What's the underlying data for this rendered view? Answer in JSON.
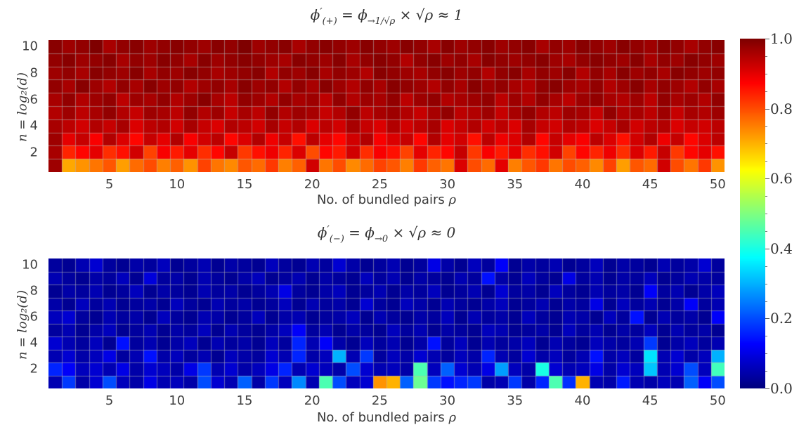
{
  "figure": {
    "background": "#ffffff",
    "xlabel_text": "No. of bundled pairs ",
    "xlabel_rho": "ρ",
    "ylabel": "n = log₂(d)",
    "x_ticks": [
      5,
      10,
      15,
      20,
      25,
      30,
      35,
      40,
      45,
      50
    ],
    "y_ticks": [
      10,
      8,
      6,
      4,
      2
    ],
    "grid_color": "rgba(180,180,180,0.55)"
  },
  "titles": {
    "plus": {
      "phi": "ϕ",
      "prime": "′",
      "sub1": "(+)",
      "eq": " = ",
      "phi2": "ϕ",
      "sub2": "→1/√ρ",
      "tail": " × √ρ ≈ 1"
    },
    "minus": {
      "phi": "ϕ",
      "prime": "′",
      "sub1": "(−)",
      "eq": " = ",
      "phi2": "ϕ",
      "sub2": "→0",
      "tail": " × √ρ ≈ 0"
    }
  },
  "colorbar": {
    "min": 0.0,
    "max": 1.0,
    "major_step": 0.2,
    "minor_step": 0.05,
    "labels": [
      "0.0",
      "0.2",
      "0.4",
      "0.6",
      "0.8",
      "1.0"
    ],
    "colormap": "jet",
    "top_color": "#800000",
    "bottom_color": "#000080"
  },
  "chart_data": [
    {
      "type": "heatmap",
      "title": "ϕ′(+) = ϕ→1/√ρ × √ρ ≈ 1",
      "xlabel": "No. of bundled pairs ρ",
      "ylabel": "n = log₂(d)",
      "x_range": [
        1,
        50
      ],
      "y_range": [
        1,
        10
      ],
      "vmin": 0.0,
      "vmax": 1.0,
      "colormap": "jet",
      "legend": "none",
      "grid": true,
      "rows_top_to_bottom": [
        [
          0.99,
          0.97,
          0.98,
          1.0,
          0.96,
          0.98,
          0.99,
          0.97,
          0.98,
          0.99,
          0.98,
          0.97,
          0.99,
          0.98,
          1.0,
          0.97,
          0.98,
          0.99,
          0.96,
          0.98,
          0.99,
          0.98,
          0.97,
          0.99,
          0.98,
          0.97,
          0.99,
          0.98,
          0.96,
          0.99,
          0.97,
          0.98,
          0.99,
          0.97,
          0.98,
          0.99,
          0.96,
          0.98,
          0.97,
          0.99,
          0.98,
          0.97,
          0.99,
          0.98,
          0.97,
          0.99,
          0.98,
          0.96,
          0.98,
          0.99
        ],
        [
          0.98,
          0.99,
          0.97,
          0.98,
          0.99,
          0.96,
          0.98,
          0.97,
          0.99,
          0.98,
          0.96,
          0.99,
          0.97,
          0.98,
          0.99,
          0.98,
          0.97,
          0.96,
          0.99,
          0.98,
          0.97,
          0.99,
          0.96,
          0.98,
          0.99,
          0.98,
          0.95,
          0.98,
          0.99,
          0.97,
          0.98,
          0.96,
          0.99,
          0.98,
          0.97,
          0.98,
          0.99,
          0.97,
          0.96,
          0.98,
          0.99,
          0.98,
          0.97,
          0.99,
          0.96,
          0.98,
          0.97,
          0.99,
          0.98,
          0.97
        ],
        [
          0.97,
          0.98,
          0.96,
          0.99,
          0.98,
          0.97,
          0.99,
          0.96,
          0.98,
          0.97,
          0.99,
          0.98,
          0.96,
          0.97,
          0.98,
          0.99,
          0.95,
          0.98,
          0.97,
          0.99,
          0.96,
          0.98,
          0.97,
          0.95,
          0.99,
          0.98,
          0.97,
          0.96,
          0.98,
          0.99,
          0.97,
          0.98,
          0.95,
          0.98,
          0.99,
          0.96,
          0.98,
          0.97,
          0.99,
          0.95,
          0.98,
          0.96,
          0.99,
          0.97,
          0.98,
          0.96,
          0.99,
          0.98,
          0.97,
          0.98
        ],
        [
          0.98,
          0.96,
          0.99,
          0.97,
          0.95,
          0.98,
          0.96,
          0.99,
          0.97,
          0.98,
          0.95,
          0.97,
          0.98,
          0.96,
          0.99,
          0.97,
          0.98,
          0.95,
          0.98,
          0.96,
          0.99,
          0.97,
          0.95,
          0.98,
          0.96,
          0.99,
          0.98,
          0.97,
          0.95,
          0.98,
          0.96,
          0.99,
          0.97,
          0.98,
          0.96,
          0.95,
          0.98,
          0.99,
          0.97,
          0.96,
          0.98,
          0.95,
          0.97,
          0.99,
          0.96,
          0.98,
          0.97,
          0.95,
          0.98,
          0.96
        ],
        [
          0.96,
          0.98,
          0.95,
          0.97,
          0.98,
          0.94,
          0.97,
          0.96,
          0.98,
          0.95,
          0.97,
          0.99,
          0.96,
          0.94,
          0.98,
          0.97,
          0.95,
          0.98,
          0.96,
          0.97,
          0.94,
          0.98,
          0.95,
          0.97,
          0.96,
          0.98,
          0.94,
          0.97,
          0.98,
          0.95,
          0.96,
          0.97,
          0.98,
          0.94,
          0.97,
          0.95,
          0.98,
          0.96,
          0.94,
          0.97,
          0.98,
          0.96,
          0.95,
          0.97,
          0.94,
          0.98,
          0.96,
          0.97,
          0.95,
          0.98
        ],
        [
          0.95,
          0.97,
          0.94,
          0.96,
          0.98,
          0.95,
          0.93,
          0.97,
          0.96,
          0.94,
          0.98,
          0.95,
          0.97,
          0.93,
          0.96,
          0.94,
          0.98,
          0.95,
          0.97,
          0.96,
          0.93,
          0.95,
          0.98,
          0.94,
          0.96,
          0.97,
          0.95,
          0.93,
          0.96,
          0.98,
          0.94,
          0.95,
          0.97,
          0.93,
          0.96,
          0.98,
          0.95,
          0.94,
          0.97,
          0.96,
          0.93,
          0.98,
          0.95,
          0.96,
          0.94,
          0.97,
          0.93,
          0.96,
          0.95,
          0.97
        ],
        [
          0.96,
          0.94,
          0.92,
          0.95,
          0.93,
          0.96,
          0.91,
          0.94,
          0.95,
          0.92,
          0.96,
          0.93,
          0.91,
          0.95,
          0.94,
          0.92,
          0.96,
          0.93,
          0.95,
          0.91,
          0.94,
          0.92,
          0.96,
          0.93,
          0.91,
          0.95,
          0.92,
          0.94,
          0.96,
          0.91,
          0.93,
          0.95,
          0.92,
          0.94,
          0.91,
          0.96,
          0.93,
          0.92,
          0.95,
          0.94,
          0.91,
          0.93,
          0.96,
          0.92,
          0.94,
          0.95,
          0.91,
          0.93,
          0.92,
          0.94
        ],
        [
          0.97,
          0.9,
          0.93,
          0.88,
          0.95,
          0.91,
          0.87,
          0.93,
          0.9,
          0.95,
          0.88,
          0.92,
          0.94,
          0.87,
          0.91,
          0.95,
          0.89,
          0.93,
          0.86,
          0.94,
          0.9,
          0.87,
          0.92,
          0.95,
          0.88,
          0.91,
          0.93,
          0.87,
          0.95,
          0.9,
          0.92,
          0.86,
          0.94,
          0.89,
          0.91,
          0.95,
          0.87,
          0.93,
          0.9,
          0.88,
          0.94,
          0.91,
          0.86,
          0.92,
          0.95,
          0.89,
          0.93,
          0.87,
          0.91,
          0.94
        ],
        [
          0.96,
          0.84,
          0.87,
          0.9,
          0.83,
          0.86,
          0.92,
          0.81,
          0.88,
          0.85,
          0.9,
          0.83,
          0.87,
          0.93,
          0.82,
          0.86,
          0.89,
          0.84,
          0.91,
          0.8,
          0.87,
          0.85,
          0.92,
          0.83,
          0.88,
          0.86,
          0.81,
          0.9,
          0.84,
          0.87,
          0.93,
          0.82,
          0.88,
          0.85,
          0.9,
          0.83,
          0.86,
          0.92,
          0.81,
          0.87,
          0.84,
          0.89,
          0.83,
          0.91,
          0.85,
          0.93,
          0.82,
          0.87,
          0.9,
          0.86
        ],
        [
          0.97,
          0.71,
          0.73,
          0.76,
          0.79,
          0.72,
          0.77,
          0.8,
          0.75,
          0.78,
          0.73,
          0.81,
          0.76,
          0.74,
          0.79,
          0.77,
          0.82,
          0.75,
          0.78,
          0.92,
          0.76,
          0.8,
          0.74,
          0.77,
          0.81,
          0.79,
          0.75,
          0.82,
          0.78,
          0.76,
          0.91,
          0.8,
          0.77,
          0.9,
          0.75,
          0.79,
          0.82,
          0.76,
          0.8,
          0.78,
          0.74,
          0.81,
          0.72,
          0.79,
          0.77,
          0.92,
          0.8,
          0.76,
          0.82,
          0.73
        ]
      ]
    },
    {
      "type": "heatmap",
      "title": "ϕ′(−) = ϕ→0 × √ρ ≈ 0",
      "xlabel": "No. of bundled pairs ρ",
      "ylabel": "n = log₂(d)",
      "x_range": [
        1,
        50
      ],
      "y_range": [
        1,
        10
      ],
      "vmin": 0.0,
      "vmax": 1.0,
      "colormap": "jet",
      "legend": "none",
      "grid": true,
      "rows_top_to_bottom": [
        [
          0.03,
          0.02,
          0.05,
          0.08,
          0.03,
          0.02,
          0.04,
          0.03,
          0.06,
          0.02,
          0.03,
          0.05,
          0.02,
          0.04,
          0.03,
          0.02,
          0.06,
          0.03,
          0.02,
          0.05,
          0.03,
          0.08,
          0.04,
          0.02,
          0.03,
          0.05,
          0.02,
          0.03,
          0.1,
          0.04,
          0.02,
          0.06,
          0.03,
          0.12,
          0.02,
          0.04,
          0.03,
          0.05,
          0.02,
          0.03,
          0.06,
          0.02,
          0.04,
          0.03,
          0.02,
          0.05,
          0.03,
          0.04,
          0.08,
          0.03
        ],
        [
          0.05,
          0.03,
          0.02,
          0.04,
          0.03,
          0.06,
          0.02,
          0.09,
          0.03,
          0.04,
          0.02,
          0.05,
          0.03,
          0.02,
          0.04,
          0.06,
          0.02,
          0.03,
          0.05,
          0.02,
          0.04,
          0.03,
          0.02,
          0.06,
          0.03,
          0.05,
          0.02,
          0.04,
          0.03,
          0.02,
          0.05,
          0.03,
          0.14,
          0.04,
          0.02,
          0.06,
          0.03,
          0.02,
          0.1,
          0.03,
          0.05,
          0.02,
          0.04,
          0.03,
          0.06,
          0.02,
          0.03,
          0.05,
          0.04,
          0.03
        ],
        [
          0.02,
          0.04,
          0.03,
          0.05,
          0.02,
          0.03,
          0.06,
          0.02,
          0.04,
          0.03,
          0.02,
          0.05,
          0.03,
          0.04,
          0.02,
          0.03,
          0.05,
          0.1,
          0.03,
          0.02,
          0.04,
          0.06,
          0.02,
          0.03,
          0.05,
          0.02,
          0.04,
          0.03,
          0.06,
          0.02,
          0.03,
          0.05,
          0.02,
          0.08,
          0.03,
          0.04,
          0.02,
          0.06,
          0.03,
          0.02,
          0.05,
          0.03,
          0.04,
          0.02,
          0.12,
          0.03,
          0.05,
          0.02,
          0.04,
          0.06
        ],
        [
          0.04,
          0.02,
          0.06,
          0.03,
          0.05,
          0.02,
          0.03,
          0.04,
          0.02,
          0.06,
          0.03,
          0.02,
          0.05,
          0.03,
          0.04,
          0.02,
          0.03,
          0.06,
          0.02,
          0.05,
          0.03,
          0.04,
          0.02,
          0.08,
          0.03,
          0.02,
          0.06,
          0.04,
          0.02,
          0.05,
          0.03,
          0.02,
          0.04,
          0.06,
          0.02,
          0.03,
          0.05,
          0.02,
          0.04,
          0.03,
          0.1,
          0.02,
          0.06,
          0.03,
          0.05,
          0.02,
          0.04,
          0.12,
          0.03,
          0.05
        ],
        [
          0.06,
          0.08,
          0.03,
          0.02,
          0.05,
          0.03,
          0.04,
          0.02,
          0.06,
          0.03,
          0.02,
          0.05,
          0.04,
          0.02,
          0.03,
          0.06,
          0.02,
          0.04,
          0.05,
          0.02,
          0.03,
          0.04,
          0.06,
          0.02,
          0.05,
          0.03,
          0.02,
          0.04,
          0.03,
          0.06,
          0.02,
          0.05,
          0.03,
          0.04,
          0.02,
          0.06,
          0.03,
          0.02,
          0.05,
          0.04,
          0.02,
          0.06,
          0.03,
          0.14,
          0.02,
          0.05,
          0.03,
          0.04,
          0.02,
          0.12
        ],
        [
          0.03,
          0.05,
          0.02,
          0.04,
          0.06,
          0.02,
          0.03,
          0.05,
          0.02,
          0.04,
          0.03,
          0.06,
          0.02,
          0.05,
          0.03,
          0.02,
          0.04,
          0.06,
          0.12,
          0.03,
          0.05,
          0.02,
          0.04,
          0.03,
          0.02,
          0.06,
          0.03,
          0.05,
          0.02,
          0.04,
          0.03,
          0.02,
          0.06,
          0.05,
          0.02,
          0.03,
          0.04,
          0.02,
          0.06,
          0.03,
          0.05,
          0.02,
          0.04,
          0.03,
          0.06,
          0.02,
          0.05,
          0.03,
          0.04,
          0.02
        ],
        [
          0.08,
          0.05,
          0.03,
          0.06,
          0.02,
          0.14,
          0.03,
          0.05,
          0.02,
          0.04,
          0.06,
          0.02,
          0.05,
          0.03,
          0.04,
          0.02,
          0.06,
          0.03,
          0.16,
          0.05,
          0.12,
          0.04,
          0.02,
          0.06,
          0.03,
          0.05,
          0.02,
          0.04,
          0.14,
          0.03,
          0.06,
          0.02,
          0.05,
          0.03,
          0.04,
          0.06,
          0.02,
          0.05,
          0.03,
          0.02,
          0.06,
          0.04,
          0.03,
          0.05,
          0.18,
          0.02,
          0.04,
          0.06,
          0.03,
          0.05
        ],
        [
          0.05,
          0.08,
          0.04,
          0.06,
          0.1,
          0.03,
          0.05,
          0.14,
          0.04,
          0.06,
          0.03,
          0.05,
          0.02,
          0.06,
          0.04,
          0.03,
          0.08,
          0.05,
          0.16,
          0.04,
          0.06,
          0.3,
          0.05,
          0.18,
          0.03,
          0.06,
          0.04,
          0.08,
          0.05,
          0.03,
          0.06,
          0.04,
          0.16,
          0.05,
          0.03,
          0.08,
          0.04,
          0.06,
          0.03,
          0.05,
          0.14,
          0.04,
          0.06,
          0.03,
          0.35,
          0.05,
          0.08,
          0.04,
          0.06,
          0.3
        ],
        [
          0.16,
          0.12,
          0.06,
          0.08,
          0.05,
          0.1,
          0.04,
          0.08,
          0.06,
          0.04,
          0.1,
          0.18,
          0.05,
          0.08,
          0.04,
          0.06,
          0.1,
          0.16,
          0.05,
          0.08,
          0.06,
          0.04,
          0.2,
          0.08,
          0.05,
          0.06,
          0.04,
          0.45,
          0.06,
          0.22,
          0.08,
          0.05,
          0.1,
          0.28,
          0.06,
          0.04,
          0.4,
          0.08,
          0.05,
          0.06,
          0.1,
          0.04,
          0.08,
          0.06,
          0.32,
          0.05,
          0.08,
          0.2,
          0.06,
          0.44
        ],
        [
          0.05,
          0.18,
          0.04,
          0.08,
          0.2,
          0.06,
          0.04,
          0.1,
          0.05,
          0.06,
          0.04,
          0.2,
          0.08,
          0.05,
          0.22,
          0.04,
          0.18,
          0.06,
          0.26,
          0.05,
          0.45,
          0.2,
          0.06,
          0.08,
          0.73,
          0.7,
          0.22,
          0.48,
          0.18,
          0.14,
          0.16,
          0.18,
          0.04,
          0.05,
          0.18,
          0.04,
          0.16,
          0.45,
          0.17,
          0.7,
          0.05,
          0.04,
          0.15,
          0.05,
          0.04,
          0.06,
          0.05,
          0.22,
          0.12,
          0.2
        ]
      ]
    }
  ]
}
